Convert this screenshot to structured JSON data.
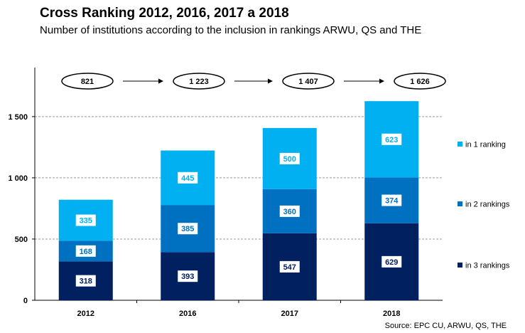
{
  "chart_data": {
    "type": "bar",
    "stacked": true,
    "title": "Cross Ranking 2012, 2016, 2017 a 2018",
    "subtitle": "Number of institutions according to the inclusion in rankings ARWU, QS and THE",
    "source": "Source: EPC CU, ARWU, QS, THE",
    "categories": [
      "2012",
      "2016",
      "2017",
      "2018"
    ],
    "series": [
      {
        "name": "in 3 rankings",
        "values": [
          318,
          393,
          547,
          629
        ],
        "color": "#002060",
        "label_color": "#002060"
      },
      {
        "name": "in 2 rankings",
        "values": [
          168,
          385,
          360,
          374
        ],
        "color": "#0070C0",
        "label_color": "#0070C0"
      },
      {
        "name": "in 1 ranking",
        "values": [
          335,
          445,
          500,
          623
        ],
        "color": "#00B0F0",
        "label_color": "#00B0F0"
      }
    ],
    "totals": [
      "821",
      "1 223",
      "1 407",
      "1 626"
    ],
    "y_ticks": [
      {
        "value": 0,
        "label": "0"
      },
      {
        "value": 500,
        "label": "500"
      },
      {
        "value": 1000,
        "label": "1 000"
      },
      {
        "value": 1500,
        "label": "1 500"
      }
    ],
    "ylim": [
      0,
      1900
    ],
    "grid": true,
    "legend_position": "right"
  }
}
